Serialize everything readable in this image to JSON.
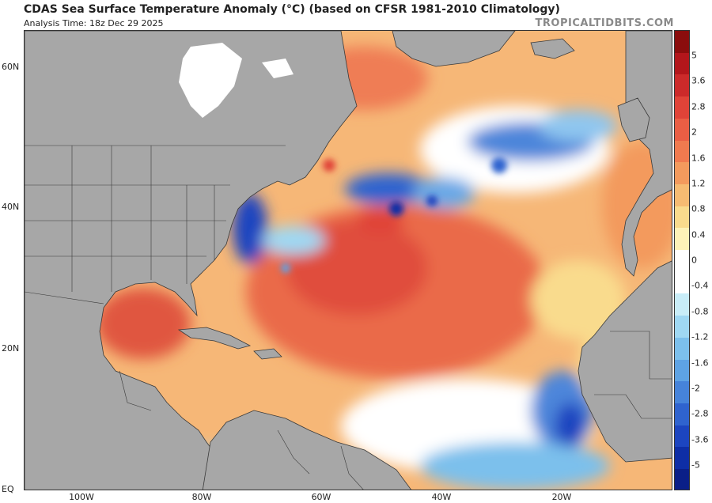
{
  "header": {
    "title": "CDAS Sea Surface Temperature Anomaly (°C) (based on CFSR 1981-2010 Climatology)",
    "analysis_time": "Analysis Time: 18z Dec 29 2025",
    "credit": "TROPICALTIDBITS.COM"
  },
  "axes": {
    "lat_labels": [
      "60N",
      "40N",
      "20N",
      "EQ"
    ],
    "lon_labels": [
      "100W",
      "80W",
      "60W",
      "40W",
      "20W"
    ]
  },
  "colorbar": {
    "labels": [
      "5",
      "3.6",
      "2.8",
      "2",
      "1.6",
      "1.2",
      "0.8",
      "0.4",
      "0",
      "-0.4",
      "-0.8",
      "-1.2",
      "-1.6",
      "-2",
      "-2.8",
      "-3.6",
      "-5"
    ],
    "colors": [
      "#8b0d0d",
      "#b3161b",
      "#cc2a2a",
      "#e04338",
      "#ea5e44",
      "#f07a4f",
      "#f39a5d",
      "#f6bb72",
      "#f9db8d",
      "#fdf2b8",
      "#ffffff",
      "#ffffff",
      "#c9edf8",
      "#9fd8f3",
      "#7cc0ec",
      "#5ea3e4",
      "#4683da",
      "#2f63cf",
      "#1c45c0",
      "#0e2ea6",
      "#0a1f88"
    ]
  }
}
